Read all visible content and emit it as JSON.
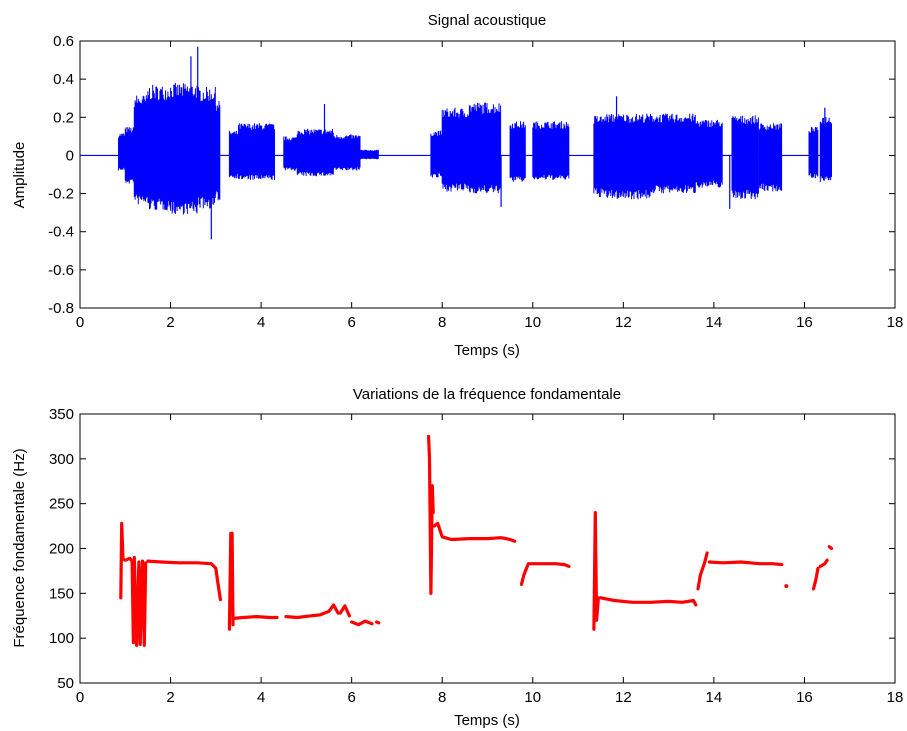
{
  "chart_data": [
    {
      "type": "line",
      "title": "Signal acoustique",
      "xlabel": "Temps (s)",
      "ylabel": "Amplitude",
      "xlim": [
        0,
        18
      ],
      "ylim": [
        -0.8,
        0.6
      ],
      "xticks": [
        "0",
        "2",
        "4",
        "6",
        "8",
        "10",
        "12",
        "14",
        "16",
        "18"
      ],
      "yticks": [
        "-0.8",
        "-0.6",
        "-0.4",
        "-0.2",
        "0",
        "0.2",
        "0.4",
        "0.6"
      ],
      "color": "#0000ff",
      "envelope": [
        {
          "t0": 0.85,
          "t1": 1.0,
          "upper": 0.12,
          "lower": -0.08
        },
        {
          "t0": 1.0,
          "t1": 1.2,
          "upper": 0.15,
          "lower": -0.15
        },
        {
          "t0": 1.2,
          "t1": 1.5,
          "upper": 0.32,
          "lower": -0.26
        },
        {
          "t0": 1.5,
          "t1": 2.0,
          "upper": 0.37,
          "lower": -0.29
        },
        {
          "t0": 2.0,
          "t1": 2.6,
          "upper": 0.38,
          "lower": -0.31
        },
        {
          "t0": 2.6,
          "t1": 3.0,
          "upper": 0.36,
          "lower": -0.28
        },
        {
          "t0": 3.0,
          "t1": 3.1,
          "upper": 0.3,
          "lower": -0.24
        },
        {
          "t0": 3.3,
          "t1": 3.5,
          "upper": 0.13,
          "lower": -0.12
        },
        {
          "t0": 3.5,
          "t1": 4.3,
          "upper": 0.17,
          "lower": -0.13
        },
        {
          "t0": 4.5,
          "t1": 4.8,
          "upper": 0.1,
          "lower": -0.08
        },
        {
          "t0": 4.8,
          "t1": 5.6,
          "upper": 0.14,
          "lower": -0.11
        },
        {
          "t0": 5.6,
          "t1": 6.2,
          "upper": 0.11,
          "lower": -0.08
        },
        {
          "t0": 6.2,
          "t1": 6.6,
          "upper": 0.03,
          "lower": -0.02
        },
        {
          "t0": 7.75,
          "t1": 8.0,
          "upper": 0.13,
          "lower": -0.12
        },
        {
          "t0": 8.0,
          "t1": 8.6,
          "upper": 0.25,
          "lower": -0.19
        },
        {
          "t0": 8.6,
          "t1": 9.3,
          "upper": 0.28,
          "lower": -0.2
        },
        {
          "t0": 9.5,
          "t1": 9.85,
          "upper": 0.18,
          "lower": -0.14
        },
        {
          "t0": 10.0,
          "t1": 10.8,
          "upper": 0.18,
          "lower": -0.13
        },
        {
          "t0": 11.35,
          "t1": 11.6,
          "upper": 0.21,
          "lower": -0.22
        },
        {
          "t0": 11.6,
          "t1": 12.6,
          "upper": 0.22,
          "lower": -0.23
        },
        {
          "t0": 12.6,
          "t1": 13.6,
          "upper": 0.22,
          "lower": -0.2
        },
        {
          "t0": 13.6,
          "t1": 14.2,
          "upper": 0.19,
          "lower": -0.17
        },
        {
          "t0": 14.4,
          "t1": 15.0,
          "upper": 0.21,
          "lower": -0.23
        },
        {
          "t0": 15.0,
          "t1": 15.5,
          "upper": 0.17,
          "lower": -0.19
        },
        {
          "t0": 16.1,
          "t1": 16.3,
          "upper": 0.15,
          "lower": -0.12
        },
        {
          "t0": 16.35,
          "t1": 16.6,
          "upper": 0.21,
          "lower": -0.14
        }
      ],
      "spikes": [
        {
          "t": 2.45,
          "upper": 0.52
        },
        {
          "t": 2.6,
          "upper": 0.57
        },
        {
          "t": 2.9,
          "lower": -0.44
        },
        {
          "t": 5.4,
          "upper": 0.27
        },
        {
          "t": 9.3,
          "lower": -0.27
        },
        {
          "t": 11.85,
          "upper": 0.31
        },
        {
          "t": 14.35,
          "lower": -0.28
        },
        {
          "t": 16.45,
          "upper": 0.25
        }
      ]
    },
    {
      "type": "scatter",
      "title": "Variations de la fréquence fondamentale",
      "xlabel": "Temps (s)",
      "ylabel": "Fréquence fondamentale (Hz)",
      "xlim": [
        0,
        18
      ],
      "ylim": [
        50,
        350
      ],
      "xticks": [
        "0",
        "2",
        "4",
        "6",
        "8",
        "10",
        "12",
        "14",
        "16",
        "18"
      ],
      "yticks": [
        "50",
        "100",
        "150",
        "200",
        "250",
        "300",
        "350"
      ],
      "color": "#ff0000",
      "segments": [
        {
          "x": [
            0.9,
            0.92,
            0.95,
            1.0,
            1.05,
            1.1,
            1.15,
            1.18
          ],
          "y": [
            145,
            228,
            188,
            187,
            188,
            189,
            186,
            95
          ]
        },
        {
          "x": [
            1.2,
            1.25,
            1.3,
            1.33,
            1.38,
            1.42,
            1.45
          ],
          "y": [
            190,
            92,
            185,
            93,
            186,
            92,
            184
          ]
        },
        {
          "x": [
            1.5,
            1.8,
            2.2,
            2.6,
            2.9,
            3.0,
            3.05,
            3.1
          ],
          "y": [
            186,
            185,
            184,
            184,
            183,
            178,
            160,
            143
          ]
        },
        {
          "x": [
            3.3,
            3.33,
            3.36,
            3.38
          ],
          "y": [
            110,
            217,
            217,
            115
          ]
        },
        {
          "x": [
            3.4,
            3.6,
            3.9,
            4.2,
            4.35
          ],
          "y": [
            122,
            123,
            124,
            123,
            123
          ]
        },
        {
          "x": [
            4.55,
            4.8,
            5.1,
            5.3,
            5.5,
            5.6,
            5.7
          ],
          "y": [
            124,
            123,
            125,
            126,
            130,
            137,
            128
          ]
        },
        {
          "x": [
            5.75,
            5.85,
            5.95
          ],
          "y": [
            128,
            136,
            125
          ]
        },
        {
          "x": [
            6.0,
            6.15,
            6.3,
            6.45
          ],
          "y": [
            118,
            115,
            119,
            116
          ]
        },
        {
          "x": [
            6.55,
            6.6
          ],
          "y": [
            118,
            117
          ]
        },
        {
          "x": [
            7.7,
            7.72,
            7.75,
            7.78,
            7.8
          ],
          "y": [
            325,
            300,
            150,
            270,
            240
          ]
        },
        {
          "x": [
            7.82,
            7.9,
            8.0,
            8.2,
            8.6,
            9.0,
            9.3,
            9.5,
            9.6
          ],
          "y": [
            225,
            228,
            213,
            210,
            211,
            211,
            212,
            210,
            208
          ]
        },
        {
          "x": [
            9.75,
            9.8,
            9.9,
            10.2,
            10.5,
            10.7,
            10.8
          ],
          "y": [
            160,
            170,
            183,
            183,
            183,
            182,
            180
          ]
        },
        {
          "x": [
            11.35,
            11.38,
            11.41,
            11.45
          ],
          "y": [
            110,
            240,
            120,
            145
          ]
        },
        {
          "x": [
            11.5,
            11.8,
            12.2,
            12.6,
            13.0,
            13.3,
            13.55,
            13.6
          ],
          "y": [
            145,
            142,
            140,
            140,
            141,
            140,
            142,
            137
          ]
        },
        {
          "x": [
            13.65,
            13.7,
            13.8,
            13.85
          ],
          "y": [
            155,
            170,
            185,
            195
          ]
        },
        {
          "x": [
            13.9,
            14.2,
            14.6,
            15.0,
            15.3,
            15.5
          ],
          "y": [
            185,
            184,
            185,
            183,
            183,
            182
          ]
        },
        {
          "x": [
            15.6
          ],
          "y": [
            158
          ]
        },
        {
          "x": [
            16.2,
            16.25,
            16.3
          ],
          "y": [
            155,
            165,
            178
          ]
        },
        {
          "x": [
            16.35,
            16.45,
            16.5
          ],
          "y": [
            180,
            183,
            187
          ]
        },
        {
          "x": [
            16.55,
            16.6
          ],
          "y": [
            202,
            200
          ]
        }
      ]
    }
  ]
}
